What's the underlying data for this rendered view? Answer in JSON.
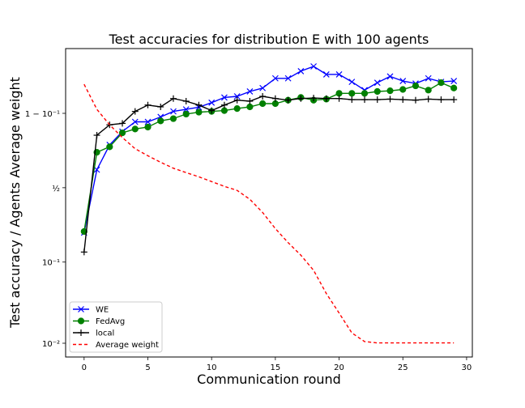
{
  "chart_data": {
    "type": "line",
    "title": "Test accuracies for distribution E with 100 agents",
    "xlabel": "Communication round",
    "ylabel": "Test accuracy / Agents Average weight",
    "xlim": [
      -1.45,
      30.45
    ],
    "x_ticks": [
      0,
      5,
      10,
      15,
      20,
      25,
      30
    ],
    "y_ticks": [
      {
        "label": "1 − 10⁻¹",
        "value": 0.9
      },
      {
        "label": "½",
        "value": 0.5
      },
      {
        "label": "10⁻¹",
        "value": 0.1
      },
      {
        "label": "10⁻²",
        "value": 0.01
      }
    ],
    "y_scale": "logit",
    "grid": false,
    "legend_position": "lower-left",
    "series": [
      {
        "name": "WE",
        "color": "#0000ff",
        "marker": "x",
        "linestyle": "solid",
        "x": [
          0,
          1,
          2,
          3,
          4,
          5,
          6,
          7,
          8,
          9,
          10,
          11,
          12,
          13,
          14,
          15,
          16,
          17,
          18,
          19,
          20,
          21,
          22,
          23,
          24,
          25,
          26,
          27,
          28,
          29
        ],
        "values": [
          0.21,
          0.63,
          0.78,
          0.84,
          0.875,
          0.875,
          0.89,
          0.905,
          0.91,
          0.915,
          0.925,
          0.935,
          0.937,
          0.945,
          0.95,
          0.962,
          0.962,
          0.969,
          0.973,
          0.966,
          0.966,
          0.958,
          0.947,
          0.957,
          0.964,
          0.959,
          0.956,
          0.962,
          0.958,
          0.959
        ]
      },
      {
        "name": "FedAvg",
        "color": "#008000",
        "marker": "o",
        "linestyle": "solid",
        "x": [
          0,
          1,
          2,
          3,
          4,
          5,
          6,
          7,
          8,
          9,
          10,
          11,
          12,
          13,
          14,
          15,
          16,
          17,
          18,
          19,
          20,
          21,
          22,
          23,
          24,
          25,
          26,
          27,
          28,
          29
        ],
        "values": [
          0.215,
          0.74,
          0.77,
          0.835,
          0.85,
          0.857,
          0.878,
          0.885,
          0.898,
          0.903,
          0.905,
          0.907,
          0.912,
          0.916,
          0.923,
          0.923,
          0.93,
          0.935,
          0.93,
          0.932,
          0.942,
          0.942,
          0.942,
          0.945,
          0.946,
          0.948,
          0.953,
          0.947,
          0.957,
          0.95
        ]
      },
      {
        "name": "local",
        "color": "#000000",
        "marker": "+",
        "linestyle": "solid",
        "x": [
          0,
          1,
          2,
          3,
          4,
          5,
          6,
          7,
          8,
          9,
          10,
          11,
          12,
          13,
          14,
          15,
          16,
          17,
          18,
          19,
          20,
          21,
          22,
          23,
          24,
          25,
          26,
          27,
          28,
          29
        ],
        "values": [
          0.13,
          0.825,
          0.865,
          0.87,
          0.905,
          0.92,
          0.916,
          0.933,
          0.928,
          0.92,
          0.907,
          0.92,
          0.93,
          0.928,
          0.937,
          0.933,
          0.93,
          0.933,
          0.934,
          0.933,
          0.933,
          0.931,
          0.931,
          0.931,
          0.932,
          0.931,
          0.93,
          0.932,
          0.931,
          0.931
        ]
      },
      {
        "name": "Average weight",
        "color": "#ff0000",
        "marker": "none",
        "linestyle": "dashed",
        "x": [
          0,
          1,
          2,
          3,
          4,
          5,
          6,
          7,
          8,
          9,
          10,
          11,
          12,
          13,
          14,
          15,
          16,
          17,
          18,
          19,
          20,
          21,
          22,
          23,
          24,
          25,
          26,
          27,
          28,
          29
        ],
        "values": [
          0.955,
          0.91,
          0.865,
          0.815,
          0.76,
          0.72,
          0.68,
          0.64,
          0.61,
          0.58,
          0.545,
          0.51,
          0.48,
          0.415,
          0.325,
          0.23,
          0.165,
          0.12,
          0.08,
          0.042,
          0.024,
          0.0135,
          0.0105,
          0.0101,
          0.0101,
          0.0101,
          0.0101,
          0.0101,
          0.0101,
          0.0101
        ]
      }
    ]
  }
}
